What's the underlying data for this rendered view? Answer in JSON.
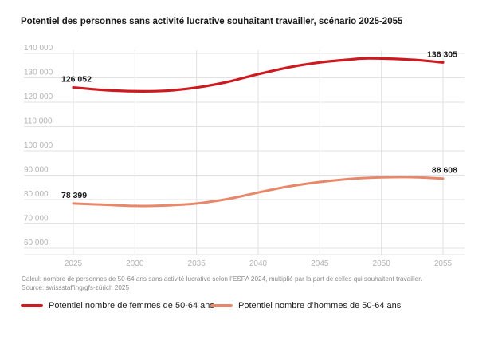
{
  "title": "Potentiel des personnes sans activité lucrative souhaitant travailler, scénario 2025-2055",
  "notes": {
    "line1": "Calcul: nombre de personnes de 50-64 ans sans activité lucrative selon l’ESPA 2024, multiplié par la part de celles qui souhaitent travailler.",
    "line2": "Source: swissstaffing/gfs-zürich 2025"
  },
  "chart_data": {
    "type": "line",
    "title": "Potentiel des personnes sans activité lucrative souhaitant travailler, scénario 2025-2055",
    "xlabel": "",
    "ylabel": "",
    "x_ticks": [
      2025,
      2030,
      2035,
      2040,
      2045,
      2050,
      2055
    ],
    "x_tick_labels": [
      "2025",
      "2030",
      "2035",
      "2040",
      "2045",
      "2050",
      "2055"
    ],
    "xlim": [
      2025,
      2055
    ],
    "y_ticks": [
      60000,
      70000,
      80000,
      90000,
      100000,
      110000,
      120000,
      130000,
      140000
    ],
    "y_tick_labels": [
      "60 000",
      "70 000",
      "80 000",
      "90 000",
      "100 000",
      "110 000",
      "120 000",
      "130 000",
      "140 000"
    ],
    "ylim": [
      60000,
      140000
    ],
    "grid": true,
    "legend_position": "bottom",
    "series": [
      {
        "name": "Potentiel nombre de femmes de 50-64 ans",
        "color": "#cc1a20",
        "x": [
          2025,
          2027.5,
          2030,
          2032.5,
          2035,
          2037.5,
          2040,
          2042.5,
          2045,
          2047.5,
          2049,
          2052.5,
          2055
        ],
        "values": [
          126052,
          125000,
          124500,
          124700,
          126000,
          128300,
          131500,
          134300,
          136300,
          137500,
          138000,
          137400,
          136305
        ],
        "start_label": "126 052",
        "end_label": "136 305"
      },
      {
        "name": "Potentiel nombre d’hommes de 50-64 ans",
        "color": "#e8876a",
        "x": [
          2025,
          2027.5,
          2030,
          2032.5,
          2035,
          2037.5,
          2040,
          2042.5,
          2045,
          2047.5,
          2050,
          2052.5,
          2055
        ],
        "values": [
          78399,
          77900,
          77400,
          77600,
          78400,
          80200,
          82900,
          85400,
          87200,
          88500,
          89100,
          89200,
          88608
        ],
        "start_label": "78 399",
        "end_label": "88 608"
      }
    ]
  }
}
